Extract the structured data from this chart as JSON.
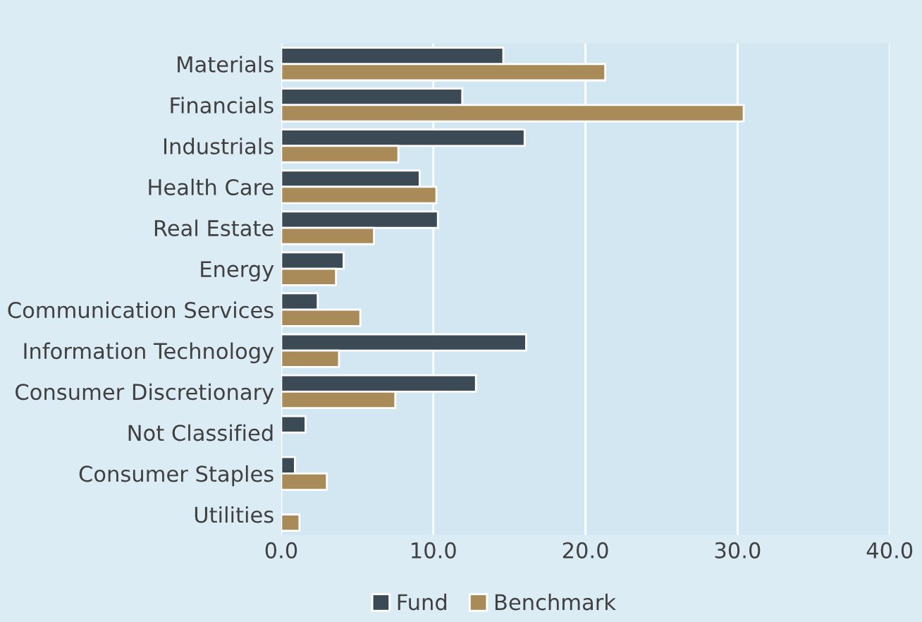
{
  "chart_data": {
    "type": "bar",
    "orientation": "horizontal",
    "categories": [
      "Materials",
      "Financials",
      "Industrials",
      "Health Care",
      "Real Estate",
      "Energy",
      "Communication Services",
      "Information Technology",
      "Consumer Discretionary",
      "Not Classified",
      "Consumer Staples",
      "Utilities"
    ],
    "series": [
      {
        "name": "Fund",
        "color": "#3b4a55",
        "values": [
          14.6,
          11.9,
          16.0,
          9.1,
          10.3,
          4.1,
          2.4,
          16.1,
          12.8,
          1.6,
          0.9,
          null
        ]
      },
      {
        "name": "Benchmark",
        "color": "#a88b58",
        "values": [
          21.3,
          30.4,
          7.7,
          10.2,
          6.1,
          3.6,
          5.2,
          3.8,
          7.5,
          null,
          3.0,
          1.2
        ]
      }
    ],
    "xlim": [
      0,
      40
    ],
    "xticks": [
      {
        "value": 0,
        "label": "0.0"
      },
      {
        "value": 10,
        "label": "10.0"
      },
      {
        "value": 20,
        "label": "20.0"
      },
      {
        "value": 30,
        "label": "30.0"
      },
      {
        "value": 40,
        "label": "40.0"
      }
    ],
    "grid": "x",
    "legend": "bottom"
  }
}
